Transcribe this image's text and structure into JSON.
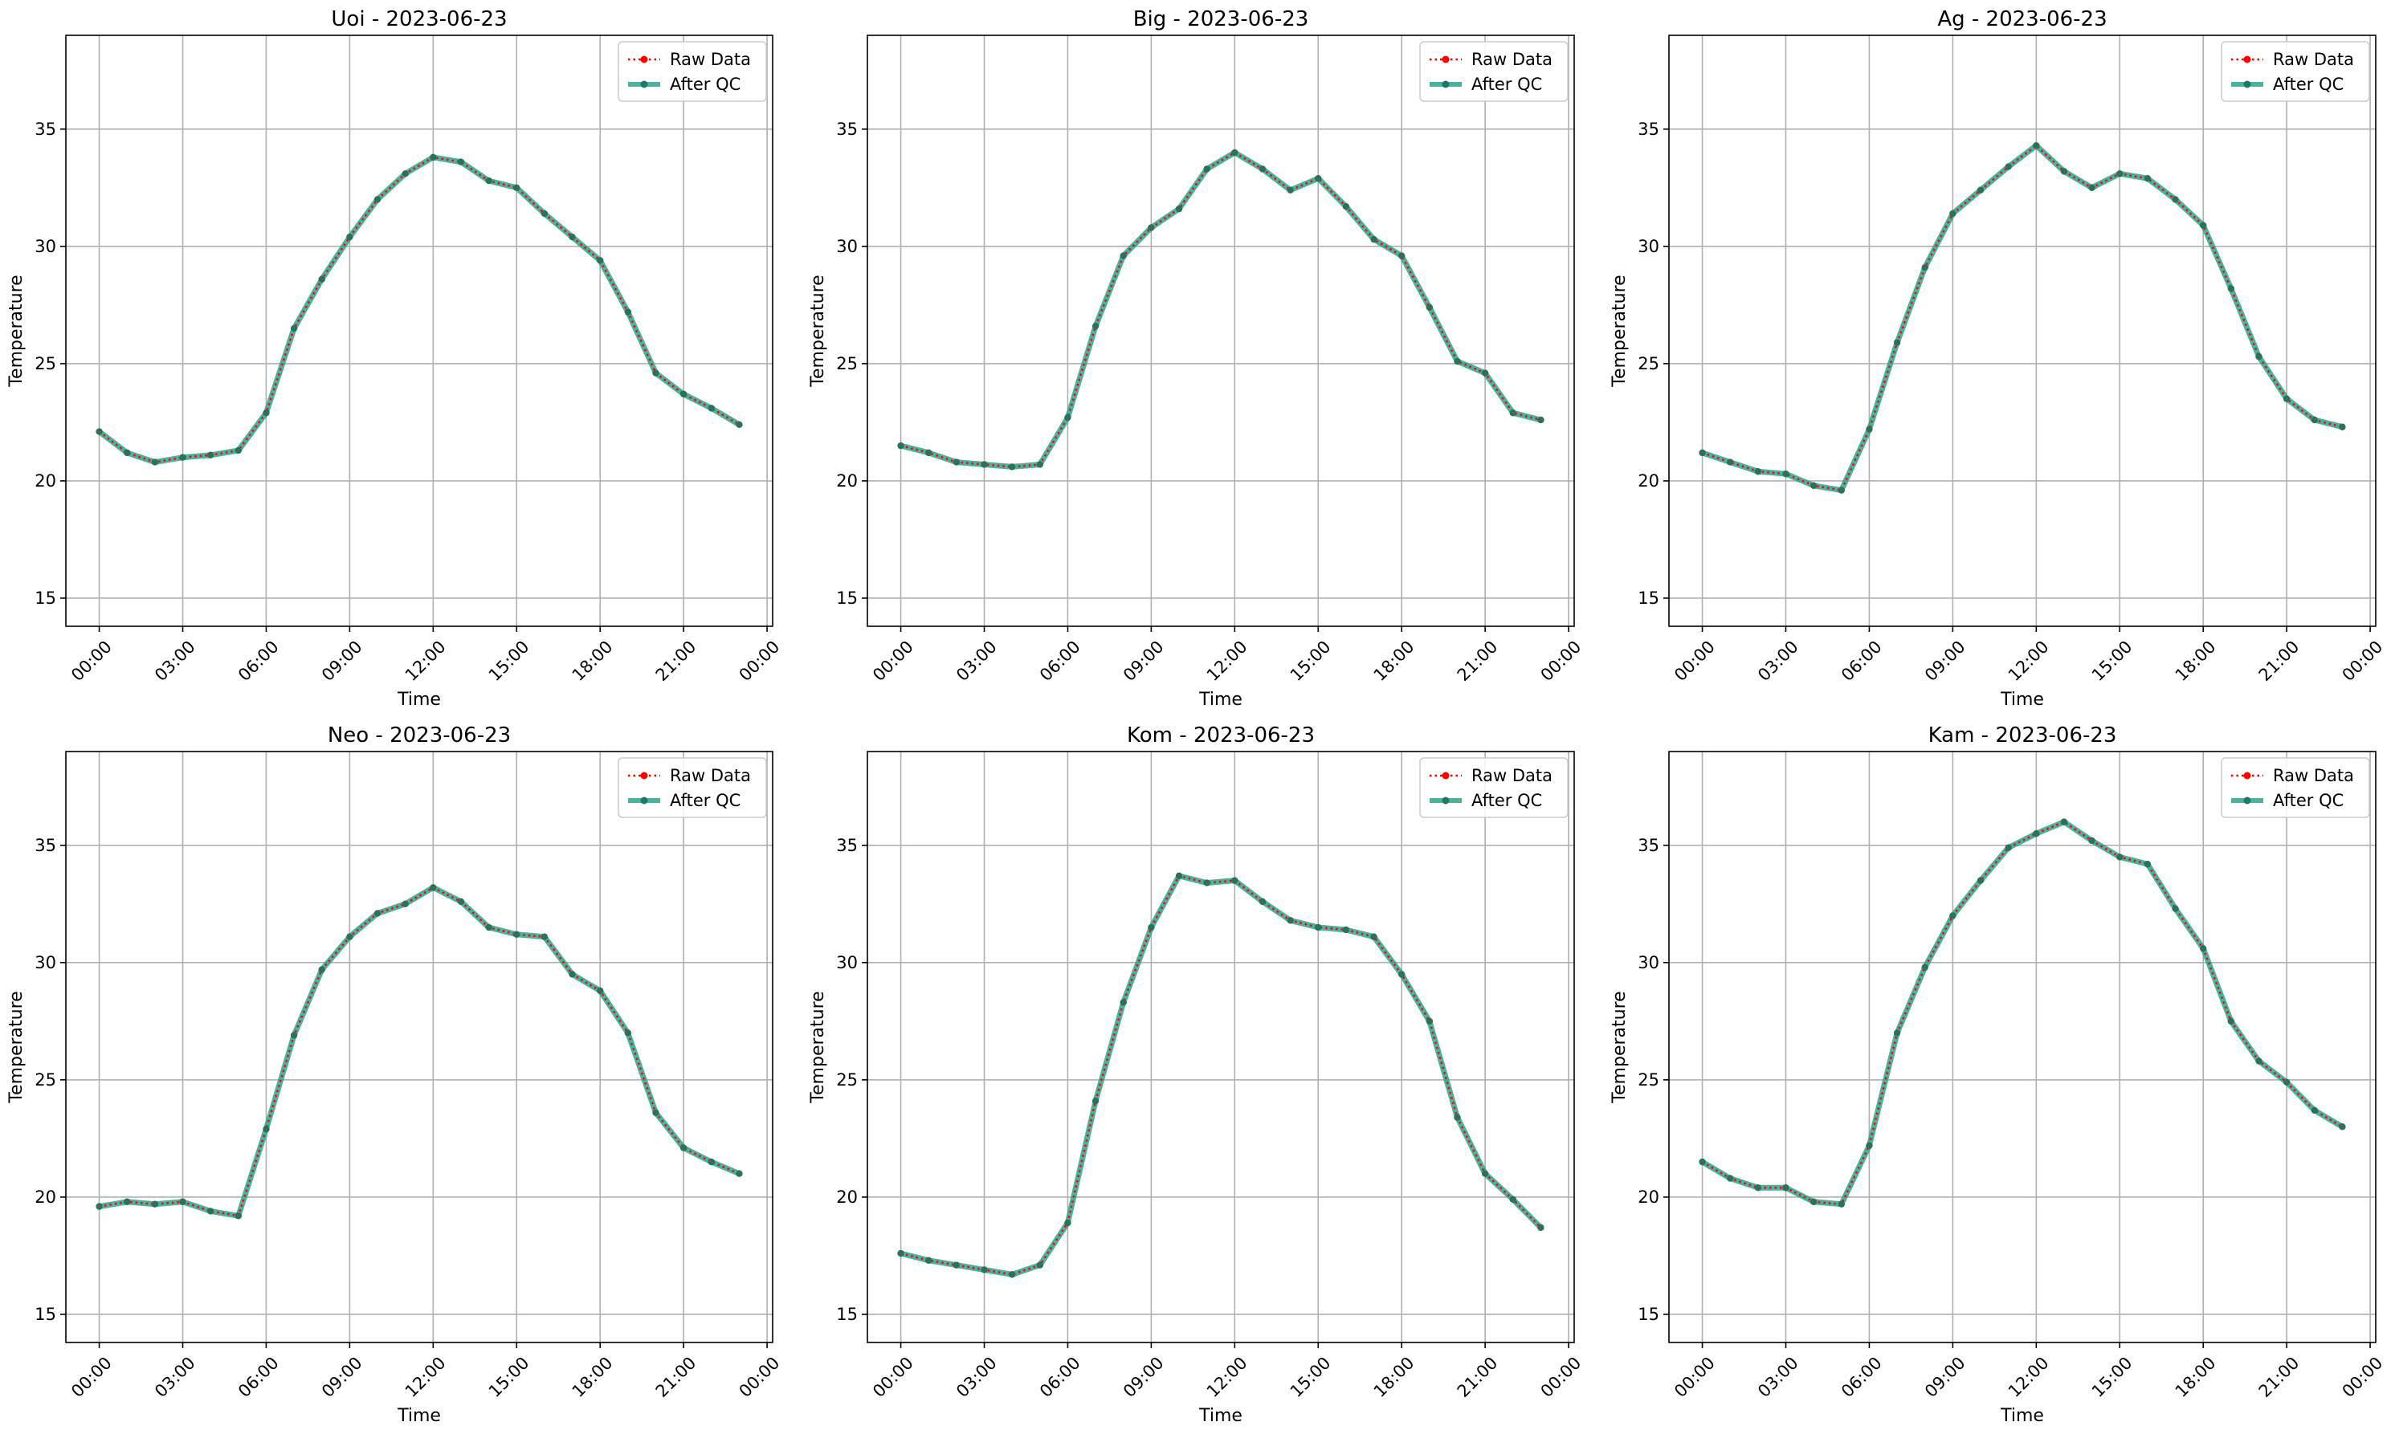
{
  "colors": {
    "raw": "#ff0000",
    "qc": "#2ca58d",
    "marker_qc": "#1e7a62",
    "grid": "#b0b0b0",
    "frame": "#000000"
  },
  "chart_data": [
    {
      "type": "line",
      "title": "Uoi - 2023-06-23",
      "xlabel": "Time",
      "ylabel": "Temperature",
      "ylim": [
        13.8,
        39.0
      ],
      "xlim_hours": [
        -1.2,
        24.2
      ],
      "y_ticks": [
        15,
        20,
        25,
        30,
        35
      ],
      "x_ticks": [
        "00:00",
        "03:00",
        "06:00",
        "09:00",
        "12:00",
        "15:00",
        "18:00",
        "21:00",
        "00:00"
      ],
      "grid": true,
      "legend": {
        "position": "top-right",
        "entries": [
          "Raw Data",
          "After QC"
        ]
      },
      "x": [
        "00:00",
        "01:00",
        "02:00",
        "03:00",
        "04:00",
        "05:00",
        "06:00",
        "07:00",
        "08:00",
        "09:00",
        "10:00",
        "11:00",
        "12:00",
        "13:00",
        "14:00",
        "15:00",
        "16:00",
        "17:00",
        "18:00",
        "19:00",
        "20:00",
        "21:00",
        "22:00",
        "23:00"
      ],
      "series": [
        {
          "name": "Raw Data",
          "values": [
            22.1,
            21.2,
            20.8,
            21.0,
            21.1,
            21.3,
            22.9,
            26.5,
            28.6,
            30.4,
            32.0,
            33.1,
            33.8,
            33.6,
            32.8,
            32.5,
            31.4,
            30.4,
            29.4,
            27.2,
            24.6,
            23.7,
            23.1,
            22.4
          ]
        },
        {
          "name": "After QC",
          "values": [
            22.1,
            21.2,
            20.8,
            21.0,
            21.1,
            21.3,
            22.9,
            26.5,
            28.6,
            30.4,
            32.0,
            33.1,
            33.8,
            33.6,
            32.8,
            32.5,
            31.4,
            30.4,
            29.4,
            27.2,
            24.6,
            23.7,
            23.1,
            22.4
          ]
        }
      ]
    },
    {
      "type": "line",
      "title": "Big - 2023-06-23",
      "xlabel": "Time",
      "ylabel": "Temperature",
      "ylim": [
        13.8,
        39.0
      ],
      "xlim_hours": [
        -1.2,
        24.2
      ],
      "y_ticks": [
        15,
        20,
        25,
        30,
        35
      ],
      "x_ticks": [
        "00:00",
        "03:00",
        "06:00",
        "09:00",
        "12:00",
        "15:00",
        "18:00",
        "21:00",
        "00:00"
      ],
      "grid": true,
      "legend": {
        "position": "top-right",
        "entries": [
          "Raw Data",
          "After QC"
        ]
      },
      "x": [
        "00:00",
        "01:00",
        "02:00",
        "03:00",
        "04:00",
        "05:00",
        "06:00",
        "07:00",
        "08:00",
        "09:00",
        "10:00",
        "11:00",
        "12:00",
        "13:00",
        "14:00",
        "15:00",
        "16:00",
        "17:00",
        "18:00",
        "19:00",
        "20:00",
        "21:00",
        "22:00",
        "23:00"
      ],
      "series": [
        {
          "name": "Raw Data",
          "values": [
            21.5,
            21.2,
            20.8,
            20.7,
            20.6,
            20.7,
            22.7,
            26.6,
            29.6,
            30.8,
            31.6,
            33.3,
            34.0,
            33.3,
            32.4,
            32.9,
            31.7,
            30.3,
            29.6,
            27.4,
            25.1,
            24.6,
            22.9,
            22.6
          ]
        },
        {
          "name": "After QC",
          "values": [
            21.5,
            21.2,
            20.8,
            20.7,
            20.6,
            20.7,
            22.7,
            26.6,
            29.6,
            30.8,
            31.6,
            33.3,
            34.0,
            33.3,
            32.4,
            32.9,
            31.7,
            30.3,
            29.6,
            27.4,
            25.1,
            24.6,
            22.9,
            22.6
          ]
        }
      ]
    },
    {
      "type": "line",
      "title": "Ag - 2023-06-23",
      "xlabel": "Time",
      "ylabel": "Temperature",
      "ylim": [
        13.8,
        39.0
      ],
      "xlim_hours": [
        -1.2,
        24.2
      ],
      "y_ticks": [
        15,
        20,
        25,
        30,
        35
      ],
      "x_ticks": [
        "00:00",
        "03:00",
        "06:00",
        "09:00",
        "12:00",
        "15:00",
        "18:00",
        "21:00",
        "00:00"
      ],
      "grid": true,
      "legend": {
        "position": "top-right",
        "entries": [
          "Raw Data",
          "After QC"
        ]
      },
      "x": [
        "00:00",
        "01:00",
        "02:00",
        "03:00",
        "04:00",
        "05:00",
        "06:00",
        "07:00",
        "08:00",
        "09:00",
        "10:00",
        "11:00",
        "12:00",
        "13:00",
        "14:00",
        "15:00",
        "16:00",
        "17:00",
        "18:00",
        "19:00",
        "20:00",
        "21:00",
        "22:00",
        "23:00"
      ],
      "series": [
        {
          "name": "Raw Data",
          "values": [
            21.2,
            20.8,
            20.4,
            20.3,
            19.8,
            19.6,
            22.2,
            25.9,
            29.1,
            31.4,
            32.4,
            33.4,
            34.3,
            33.2,
            32.5,
            33.1,
            32.9,
            32.0,
            30.9,
            28.2,
            25.3,
            23.5,
            22.6,
            22.3
          ]
        },
        {
          "name": "After QC",
          "values": [
            21.2,
            20.8,
            20.4,
            20.3,
            19.8,
            19.6,
            22.2,
            25.9,
            29.1,
            31.4,
            32.4,
            33.4,
            34.3,
            33.2,
            32.5,
            33.1,
            32.9,
            32.0,
            30.9,
            28.2,
            25.3,
            23.5,
            22.6,
            22.3
          ]
        }
      ]
    },
    {
      "type": "line",
      "title": "Neo - 2023-06-23",
      "xlabel": "Time",
      "ylabel": "Temperature",
      "ylim": [
        13.8,
        39.0
      ],
      "xlim_hours": [
        -1.2,
        24.2
      ],
      "y_ticks": [
        15,
        20,
        25,
        30,
        35
      ],
      "x_ticks": [
        "00:00",
        "03:00",
        "06:00",
        "09:00",
        "12:00",
        "15:00",
        "18:00",
        "21:00",
        "00:00"
      ],
      "grid": true,
      "legend": {
        "position": "top-right",
        "entries": [
          "Raw Data",
          "After QC"
        ]
      },
      "x": [
        "00:00",
        "01:00",
        "02:00",
        "03:00",
        "04:00",
        "05:00",
        "06:00",
        "07:00",
        "08:00",
        "09:00",
        "10:00",
        "11:00",
        "12:00",
        "13:00",
        "14:00",
        "15:00",
        "16:00",
        "17:00",
        "18:00",
        "19:00",
        "20:00",
        "21:00",
        "22:00",
        "23:00"
      ],
      "series": [
        {
          "name": "Raw Data",
          "values": [
            19.6,
            19.8,
            19.7,
            19.8,
            19.4,
            19.2,
            22.9,
            26.9,
            29.7,
            31.1,
            32.1,
            32.5,
            33.2,
            32.6,
            31.5,
            31.2,
            31.1,
            29.5,
            28.8,
            27.0,
            23.6,
            22.1,
            21.5,
            21.0
          ]
        },
        {
          "name": "After QC",
          "values": [
            19.6,
            19.8,
            19.7,
            19.8,
            19.4,
            19.2,
            22.9,
            26.9,
            29.7,
            31.1,
            32.1,
            32.5,
            33.2,
            32.6,
            31.5,
            31.2,
            31.1,
            29.5,
            28.8,
            27.0,
            23.6,
            22.1,
            21.5,
            21.0
          ]
        }
      ]
    },
    {
      "type": "line",
      "title": "Kom - 2023-06-23",
      "xlabel": "Time",
      "ylabel": "Temperature",
      "ylim": [
        13.8,
        39.0
      ],
      "xlim_hours": [
        -1.2,
        24.2
      ],
      "y_ticks": [
        15,
        20,
        25,
        30,
        35
      ],
      "x_ticks": [
        "00:00",
        "03:00",
        "06:00",
        "09:00",
        "12:00",
        "15:00",
        "18:00",
        "21:00",
        "00:00"
      ],
      "grid": true,
      "legend": {
        "position": "top-right",
        "entries": [
          "Raw Data",
          "After QC"
        ]
      },
      "x": [
        "00:00",
        "01:00",
        "02:00",
        "03:00",
        "04:00",
        "05:00",
        "06:00",
        "07:00",
        "08:00",
        "09:00",
        "10:00",
        "11:00",
        "12:00",
        "13:00",
        "14:00",
        "15:00",
        "16:00",
        "17:00",
        "18:00",
        "19:00",
        "20:00",
        "21:00",
        "22:00",
        "23:00"
      ],
      "series": [
        {
          "name": "Raw Data",
          "values": [
            17.6,
            17.3,
            17.1,
            16.9,
            16.7,
            17.1,
            18.9,
            24.1,
            28.3,
            31.5,
            33.7,
            33.4,
            33.5,
            32.6,
            31.8,
            31.5,
            31.4,
            31.1,
            29.5,
            27.5,
            23.4,
            21.0,
            19.9,
            18.7
          ]
        },
        {
          "name": "After QC",
          "values": [
            17.6,
            17.3,
            17.1,
            16.9,
            16.7,
            17.1,
            18.9,
            24.1,
            28.3,
            31.5,
            33.7,
            33.4,
            33.5,
            32.6,
            31.8,
            31.5,
            31.4,
            31.1,
            29.5,
            27.5,
            23.4,
            21.0,
            19.9,
            18.7
          ]
        }
      ]
    },
    {
      "type": "line",
      "title": "Kam - 2023-06-23",
      "xlabel": "Time",
      "ylabel": "Temperature",
      "ylim": [
        13.8,
        39.0
      ],
      "xlim_hours": [
        -1.2,
        24.2
      ],
      "y_ticks": [
        15,
        20,
        25,
        30,
        35
      ],
      "x_ticks": [
        "00:00",
        "03:00",
        "06:00",
        "09:00",
        "12:00",
        "15:00",
        "18:00",
        "21:00",
        "00:00"
      ],
      "grid": true,
      "legend": {
        "position": "top-right",
        "entries": [
          "Raw Data",
          "After QC"
        ]
      },
      "x": [
        "00:00",
        "01:00",
        "02:00",
        "03:00",
        "04:00",
        "05:00",
        "06:00",
        "07:00",
        "08:00",
        "09:00",
        "10:00",
        "11:00",
        "12:00",
        "13:00",
        "14:00",
        "15:00",
        "16:00",
        "17:00",
        "18:00",
        "19:00",
        "20:00",
        "21:00",
        "22:00",
        "23:00"
      ],
      "series": [
        {
          "name": "Raw Data",
          "values": [
            21.5,
            20.8,
            20.4,
            20.4,
            19.8,
            19.7,
            22.2,
            27.0,
            29.8,
            32.0,
            33.5,
            34.9,
            35.5,
            36.0,
            35.2,
            34.5,
            34.2,
            32.3,
            30.6,
            27.5,
            25.8,
            24.9,
            23.7,
            23.0
          ]
        },
        {
          "name": "After QC",
          "values": [
            21.5,
            20.8,
            20.4,
            20.4,
            19.8,
            19.7,
            22.2,
            27.0,
            29.8,
            32.0,
            33.5,
            34.9,
            35.5,
            36.0,
            35.2,
            34.5,
            34.2,
            32.3,
            30.6,
            27.5,
            25.8,
            24.9,
            23.7,
            23.0
          ]
        }
      ]
    }
  ]
}
